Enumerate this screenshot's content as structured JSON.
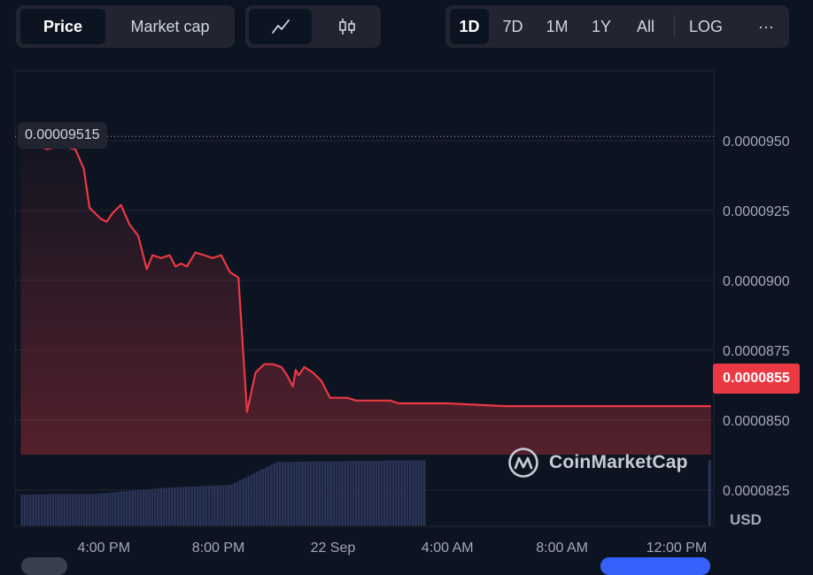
{
  "toolbar": {
    "metric_tabs": [
      "Price",
      "Market cap"
    ],
    "active_metric": "Price",
    "chart_type_icons": [
      "line-chart-icon",
      "candlestick-icon"
    ],
    "range_buttons": [
      "1D",
      "7D",
      "1M",
      "1Y",
      "All"
    ],
    "active_range": "1D",
    "log_label": "LOG",
    "more_label": "···"
  },
  "price_tags": {
    "start": "0.00009515",
    "end": "0.0000855"
  },
  "watermark": {
    "text": "CoinMarketCap"
  },
  "currency_label": "USD",
  "colors": {
    "background": "#0d1421",
    "line": "#ea3943",
    "volume": "#2a3456",
    "grid": "#222531",
    "active_range": "#3861fb"
  },
  "chart_data": {
    "type": "line",
    "x_ticks": [
      "4:00 PM",
      "8:00 PM",
      "22 Sep",
      "4:00 AM",
      "8:00 AM",
      "12:00 PM"
    ],
    "y_ticks": [
      "0.0000950",
      "0.0000925",
      "0.0000900",
      "0.0000875",
      "0.0000825"
    ],
    "ylim": [
      8.12e-05,
      9.75e-05
    ],
    "xlim": [
      12.9,
      37.3
    ],
    "x_units": "hours since 00:00 on 21 Sep",
    "grid": true,
    "series": [
      {
        "x": [
          13.1,
          13.5,
          14.0,
          14.5,
          15.0,
          15.3,
          15.5,
          15.7,
          15.9,
          16.1,
          16.3,
          16.6,
          16.9,
          17.2,
          17.5,
          17.7,
          18.0,
          18.3,
          18.5,
          18.7,
          18.9,
          19.2,
          19.5,
          19.8,
          20.1,
          20.4,
          20.7,
          21.0,
          21.3,
          21.6,
          21.9,
          22.2,
          22.4,
          22.6,
          22.7,
          22.8,
          23.0,
          23.3,
          23.6,
          23.9,
          24.2,
          24.5,
          24.8,
          25.1,
          25.4,
          25.7,
          26.0,
          26.3,
          26.6,
          26.9,
          27.2,
          27.5,
          28.0,
          30.0,
          33.0,
          37.2
        ],
        "y": [
          9.515e-05,
          9.49e-05,
          9.47e-05,
          9.48e-05,
          9.47e-05,
          9.4e-05,
          9.26e-05,
          9.24e-05,
          9.22e-05,
          9.21e-05,
          9.24e-05,
          9.27e-05,
          9.2e-05,
          9.16e-05,
          9.04e-05,
          9.09e-05,
          9.08e-05,
          9.09e-05,
          9.05e-05,
          9.06e-05,
          9.05e-05,
          9.1e-05,
          9.09e-05,
          9.08e-05,
          9.09e-05,
          9.03e-05,
          9.01e-05,
          8.53e-05,
          8.67e-05,
          8.7e-05,
          8.7e-05,
          8.69e-05,
          8.66e-05,
          8.62e-05,
          8.68e-05,
          8.66e-05,
          8.69e-05,
          8.67e-05,
          8.64e-05,
          8.58e-05,
          8.58e-05,
          8.58e-05,
          8.57e-05,
          8.57e-05,
          8.57e-05,
          8.57e-05,
          8.57e-05,
          8.56e-05,
          8.56e-05,
          8.56e-05,
          8.56e-05,
          8.56e-05,
          8.56e-05,
          8.55e-05,
          8.55e-05,
          8.55e-05
        ]
      }
    ],
    "volume": {
      "x": [
        13.1,
        15.7,
        18.0,
        20.4,
        22.0,
        26.5,
        37.2
      ],
      "rel": [
        0.38,
        0.39,
        0.46,
        0.5,
        0.78,
        0.8,
        0.8
      ]
    }
  }
}
